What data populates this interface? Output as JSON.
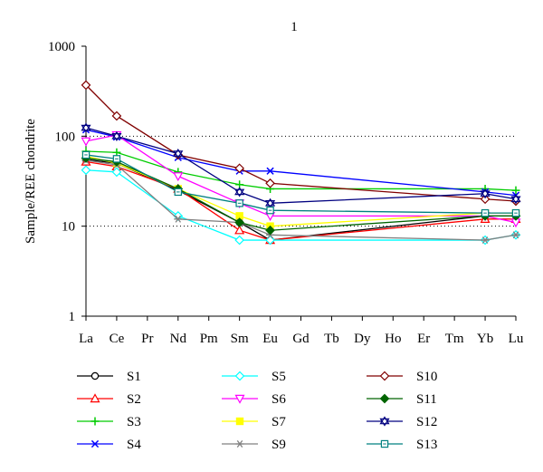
{
  "chart_data": {
    "type": "line",
    "title": "1",
    "ylabel": "Sample/REE chondrite",
    "xlabel": "",
    "y_scale": "log",
    "ylim": [
      1,
      1000
    ],
    "y_ticks": [
      "1",
      "10",
      "100",
      "1000"
    ],
    "categories": [
      "La",
      "Ce",
      "Pr",
      "Nd",
      "Pm",
      "Sm",
      "Eu",
      "Gd",
      "Tb",
      "Dy",
      "Ho",
      "Er",
      "Tm",
      "Yb",
      "Lu"
    ],
    "grid": "dotted horizontal at 10 and 100",
    "legend_position": "bottom",
    "series": [
      {
        "name": "S1",
        "color": "#000000",
        "marker": "circle-open",
        "values": {
          "La": 55,
          "Ce": 50,
          "Nd": 25,
          "Sm": 11,
          "Eu": 7,
          "Yb": 13,
          "Lu": 13
        }
      },
      {
        "name": "S2",
        "color": "#ff0000",
        "marker": "triangle-open",
        "values": {
          "La": 52,
          "Ce": 46,
          "Nd": 26,
          "Sm": 9,
          "Eu": 7,
          "Yb": 12,
          "Lu": 12
        }
      },
      {
        "name": "S3",
        "color": "#00cc00",
        "marker": "plus",
        "values": {
          "La": 68,
          "Ce": 66,
          "Nd": 40,
          "Sm": 29,
          "Eu": 26,
          "Yb": 26,
          "Lu": 25
        }
      },
      {
        "name": "S4",
        "color": "#0000ff",
        "marker": "x",
        "values": {
          "La": 118,
          "Ce": 98,
          "Nd": 58,
          "Sm": 41,
          "Eu": 41,
          "Yb": 24,
          "Lu": 22
        }
      },
      {
        "name": "S5",
        "color": "#00ffff",
        "marker": "diamond-open",
        "values": {
          "La": 42,
          "Ce": 40,
          "Nd": 13,
          "Sm": 7,
          "Eu": 7,
          "Yb": 7,
          "Lu": 8
        }
      },
      {
        "name": "S6",
        "color": "#ff00ff",
        "marker": "triangle-down-open",
        "values": {
          "La": 88,
          "Ce": 103,
          "Nd": 36,
          "Sm": 18,
          "Eu": 13,
          "Yb": 13,
          "Lu": 11
        }
      },
      {
        "name": "S7",
        "color": "#ffff00",
        "marker": "square",
        "values": {
          "La": 60,
          "Ce": 50,
          "Nd": 26,
          "Sm": 13,
          "Eu": 10,
          "Yb": 14,
          "Lu": 14
        }
      },
      {
        "name": "S9",
        "color": "#808080",
        "marker": "asterisk",
        "values": {
          "La": 54,
          "Ce": 48,
          "Nd": 12,
          "Sm": 11,
          "Eu": 8,
          "Yb": 7,
          "Lu": 8
        }
      },
      {
        "name": "S10",
        "color": "#800000",
        "marker": "diamond-open",
        "values": {
          "La": 370,
          "Ce": 168,
          "Nd": 62,
          "Sm": 44,
          "Eu": 30,
          "Yb": 20,
          "Lu": 19
        }
      },
      {
        "name": "S11",
        "color": "#006400",
        "marker": "diamond-filled",
        "values": {
          "La": 57,
          "Ce": 52,
          "Nd": 26,
          "Sm": 11,
          "Eu": 9,
          "Yb": 13,
          "Lu": 13
        }
      },
      {
        "name": "S12",
        "color": "#000080",
        "marker": "star-of-david",
        "values": {
          "La": 124,
          "Ce": 100,
          "Nd": 64,
          "Sm": 24,
          "Eu": 18,
          "Yb": 23,
          "Lu": 20
        }
      },
      {
        "name": "S13",
        "color": "#008080",
        "marker": "square-open",
        "values": {
          "La": 62,
          "Ce": 56,
          "Nd": 24,
          "Sm": 18,
          "Eu": 15,
          "Yb": 14,
          "Lu": 14
        }
      }
    ]
  }
}
